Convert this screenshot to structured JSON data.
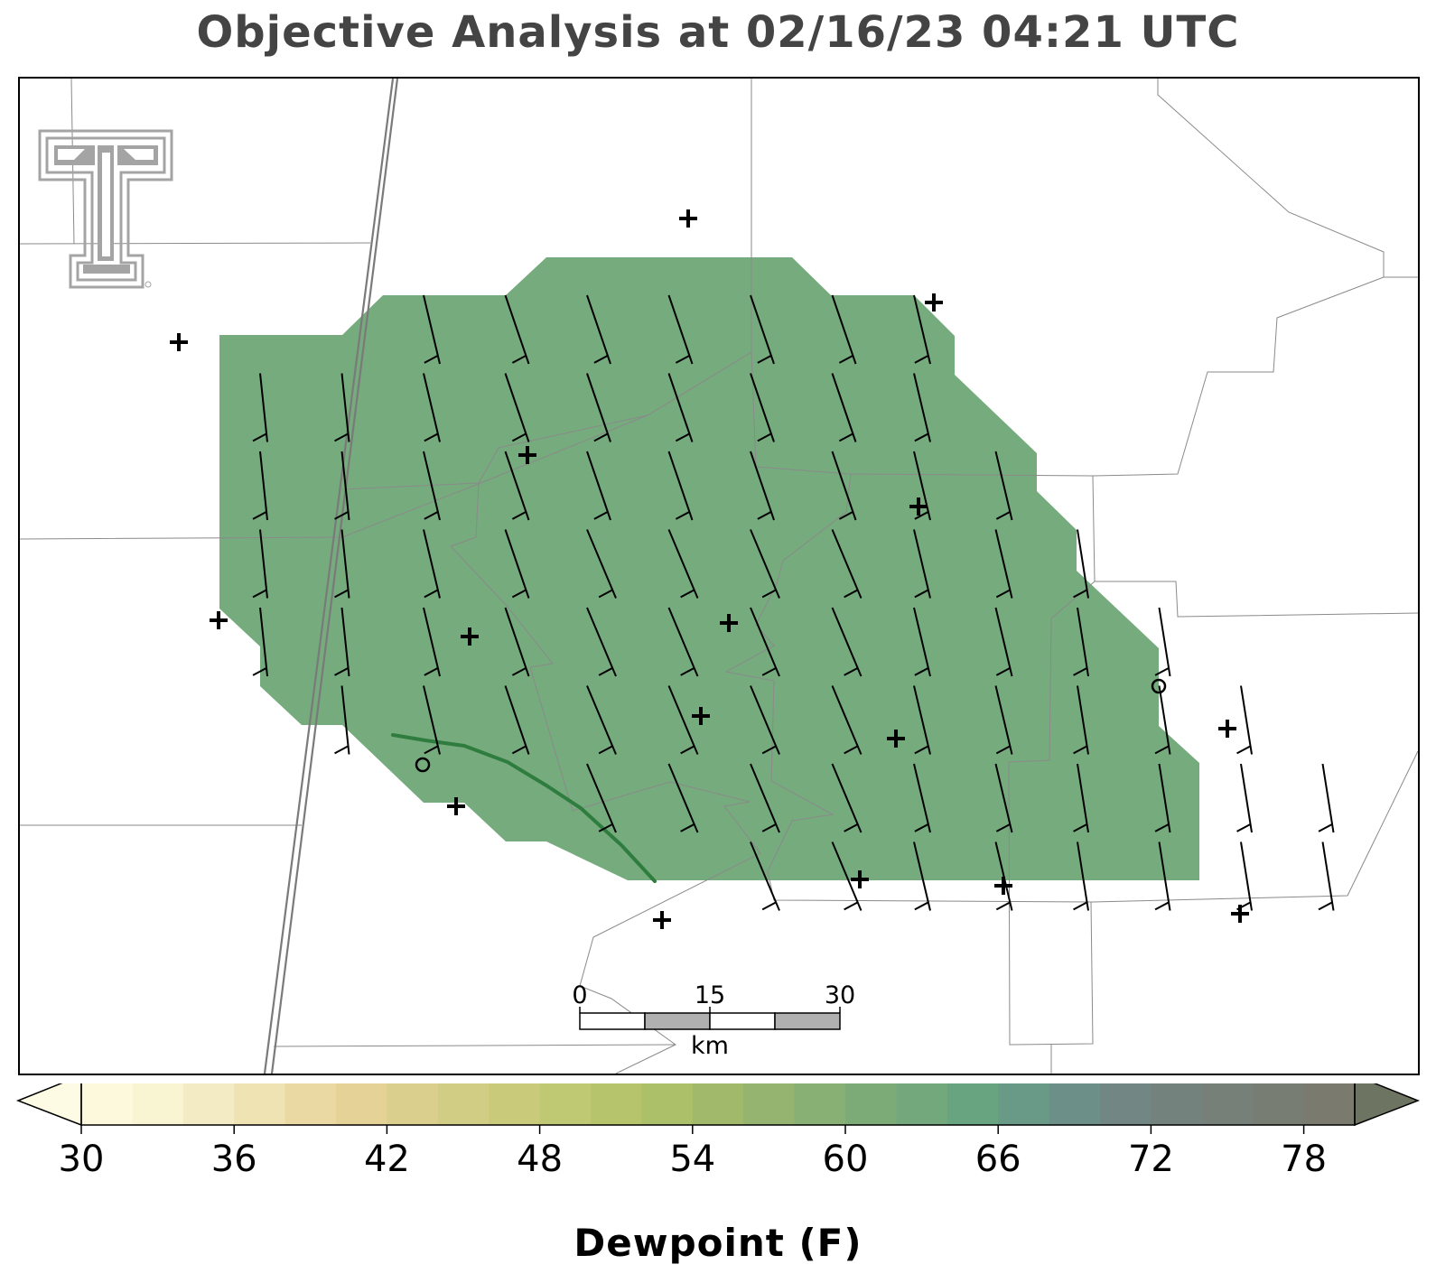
{
  "title": "Objective Analysis at 02/16/23 04:21 UTC",
  "colorbar": {
    "label": "Dewpoint (F)",
    "min": 30,
    "max": 80,
    "ticks": [
      30,
      36,
      42,
      48,
      54,
      60,
      66,
      72,
      78
    ],
    "colors": [
      "#fdf9dc",
      "#f9f4d2",
      "#f3ebc3",
      "#efe2b3",
      "#ebd9a4",
      "#e4d296",
      "#dbcf8e",
      "#d2cd85",
      "#c9cb7b",
      "#bfc872",
      "#b6c56b",
      "#abc068",
      "#a0b96a",
      "#95b46f",
      "#89b074",
      "#7dab78",
      "#73a87c",
      "#69a480",
      "#689a87",
      "#6c8f87",
      "#728783",
      "#74827e",
      "#767f78",
      "#787d73",
      "#7a7b6e"
    ],
    "extend_low_color": "#fefbe4",
    "extend_high_color": "#6e7462"
  },
  "analysis_fill_color": "#75ab7d",
  "dryline_color": "#2f7d3e",
  "scale_bar": {
    "labels": [
      "0",
      "15",
      "30"
    ],
    "unit": "km"
  },
  "logo": "texas-tech-double-t-logo",
  "station_markers": "plus for reporting station, circle for calm wind",
  "wind_barbs": "sustained wind ~15-20 kt from the north-northwest across the analysis grid"
}
